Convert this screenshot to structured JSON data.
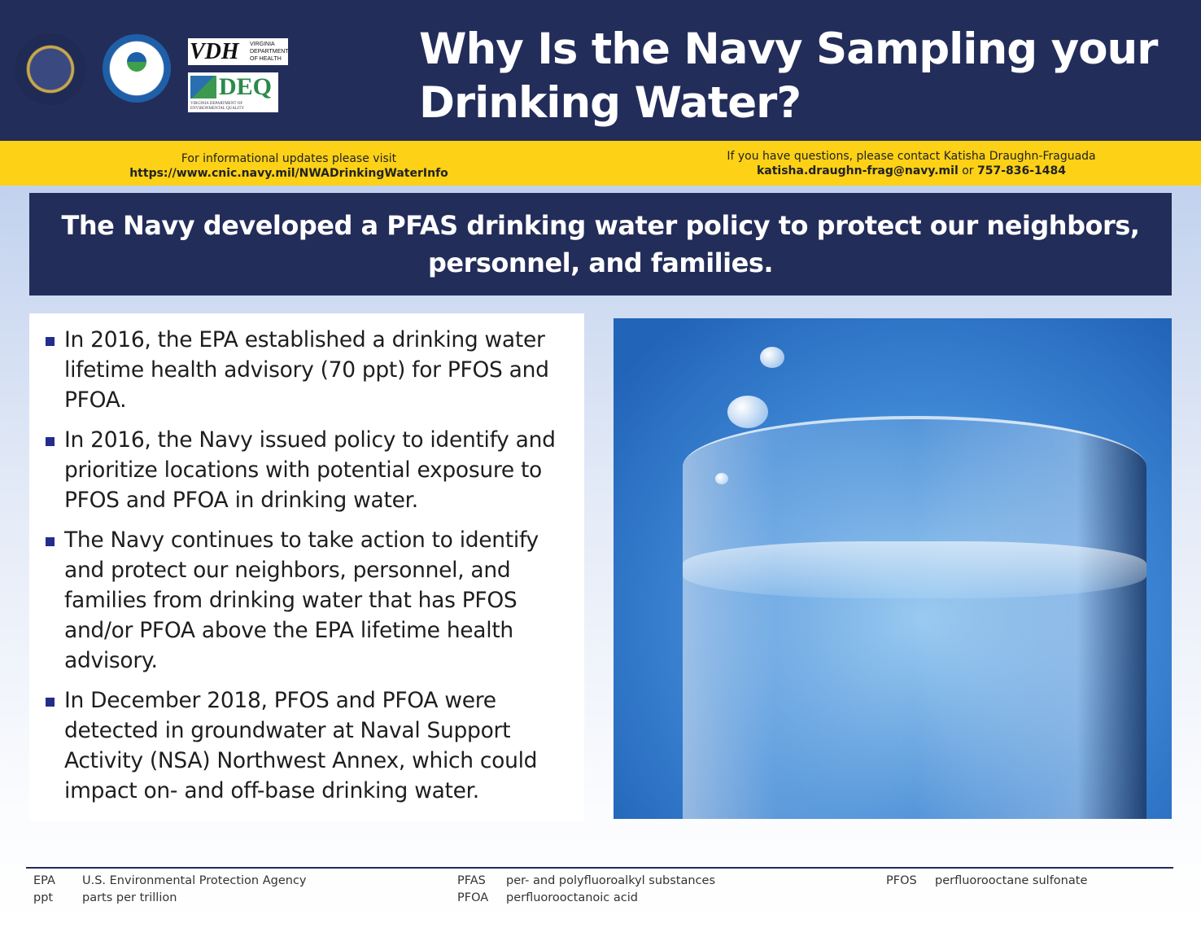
{
  "header": {
    "logos": {
      "navy": "Department of the Navy United States of America",
      "epa": "United States Environmental Protection Agency",
      "vdh": "VDH",
      "vdh_sub": "VIRGINIA DEPARTMENT OF HEALTH",
      "deq": "DEQ",
      "deq_sub": "VIRGINIA DEPARTMENT OF ENVIRONMENTAL QUALITY"
    },
    "title_line1": "Why Is the Navy Sampling your",
    "title_line2": "Drinking Water?"
  },
  "info_bar": {
    "left_line1": "For informational updates please visit",
    "left_url": "https://www.cnic.navy.mil/NWADrinkingWaterInfo",
    "right_line1": "If you have questions, please contact Katisha Draughn-Fraguada",
    "right_email": "katisha.draughn-frag@navy.mil",
    "right_or": " or ",
    "right_phone": "757-836-1484"
  },
  "banner": {
    "line1": "The Navy developed a PFAS drinking water policy to protect our neighbors,",
    "line2": "personnel, and families."
  },
  "bullets": [
    "In 2016, the EPA established a drinking water lifetime health advisory (70 ppt) for PFOS and PFOA.",
    "In 2016, the Navy issued policy to identify and prioritize locations with potential exposure to PFOS and PFOA in drinking water.",
    "The Navy continues to take action to identify and protect our neighbors, personnel, and families from drinking water that has PFOS and/or PFOA above the EPA lifetime health advisory.",
    "In December 2018, PFOS and PFOA were detected in groundwater at Naval Support Activity (NSA) Northwest Annex, which could impact on- and off-base drinking water."
  ],
  "glossary": [
    {
      "abbr": "EPA",
      "def": "U.S. Environmental Protection Agency"
    },
    {
      "abbr": "ppt",
      "def": "parts per trillion"
    },
    {
      "abbr": "PFAS",
      "def": "per- and polyfluoroalkyl substances"
    },
    {
      "abbr": "PFOA",
      "def": "perfluorooctanoic acid"
    },
    {
      "abbr": "PFOS",
      "def": "perfluorooctane sulfonate"
    }
  ],
  "colors": {
    "navy": "#232d5a",
    "yellow": "#fcd116",
    "bullet": "#232d8a"
  }
}
